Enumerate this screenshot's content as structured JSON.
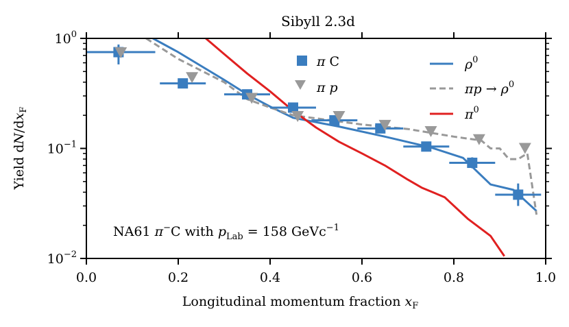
{
  "chart_data": {
    "type": "line",
    "title": "Sibyll 2.3d",
    "xlabel": "Longitudinal momentum fraction x_F",
    "ylabel": "Yield dN/dx_F",
    "xlim": [
      0.0,
      1.0
    ],
    "ylim": [
      0.01,
      1.0
    ],
    "yscale": "log",
    "xticks": [
      {
        "value": 0.0,
        "label": "0.0"
      },
      {
        "value": 0.2,
        "label": "0.2"
      },
      {
        "value": 0.4,
        "label": "0.4"
      },
      {
        "value": 0.6,
        "label": "0.6"
      },
      {
        "value": 0.8,
        "label": "0.8"
      },
      {
        "value": 1.0,
        "label": "1.0"
      }
    ],
    "yticks": [
      {
        "value": 1.0,
        "base": "10",
        "exp": "0"
      },
      {
        "value": 0.1,
        "base": "10",
        "exp": "−1"
      },
      {
        "value": 0.01,
        "base": "10",
        "exp": "−2"
      }
    ],
    "annotation": "NA61 π⁻C with p_Lab = 158 GeVc⁻¹",
    "legend": [
      {
        "label": "π C",
        "kind": "square-marker",
        "color": "#3a7dbf"
      },
      {
        "label": "π p",
        "kind": "triangle-marker",
        "color": "#999999"
      },
      {
        "label": "ρ⁰",
        "kind": "solid-line",
        "color": "#3a7dbf"
      },
      {
        "label": "πp → ρ⁰",
        "kind": "dashed-line",
        "color": "#999999"
      },
      {
        "label": "π⁰",
        "kind": "solid-line",
        "color": "#e02020"
      }
    ],
    "series": [
      {
        "name": "π C",
        "kind": "errorbar-square",
        "color": "#3a7dbf",
        "points": [
          {
            "x": 0.07,
            "y": 0.75,
            "xerr": 0.08,
            "ylo": 0.58,
            "yhi": 0.88
          },
          {
            "x": 0.21,
            "y": 0.39,
            "xerr": 0.05,
            "ylo": 0.38,
            "yhi": 0.41
          },
          {
            "x": 0.35,
            "y": 0.31,
            "xerr": 0.05,
            "ylo": 0.29,
            "yhi": 0.33
          },
          {
            "x": 0.45,
            "y": 0.235,
            "xerr": 0.05,
            "ylo": 0.22,
            "yhi": 0.25
          },
          {
            "x": 0.54,
            "y": 0.18,
            "xerr": 0.05,
            "ylo": 0.17,
            "yhi": 0.19
          },
          {
            "x": 0.64,
            "y": 0.152,
            "xerr": 0.05,
            "ylo": 0.145,
            "yhi": 0.16
          },
          {
            "x": 0.74,
            "y": 0.104,
            "xerr": 0.05,
            "ylo": 0.1,
            "yhi": 0.109
          },
          {
            "x": 0.84,
            "y": 0.074,
            "xerr": 0.05,
            "ylo": 0.066,
            "yhi": 0.083
          },
          {
            "x": 0.94,
            "y": 0.038,
            "xerr": 0.05,
            "ylo": 0.03,
            "yhi": 0.048
          }
        ]
      },
      {
        "name": "π p",
        "kind": "triangle",
        "color": "#999999",
        "points": [
          {
            "x": 0.075,
            "y": 0.74
          },
          {
            "x": 0.23,
            "y": 0.44
          },
          {
            "x": 0.36,
            "y": 0.285
          },
          {
            "x": 0.46,
            "y": 0.195
          },
          {
            "x": 0.55,
            "y": 0.195
          },
          {
            "x": 0.65,
            "y": 0.162
          },
          {
            "x": 0.75,
            "y": 0.142
          },
          {
            "x": 0.855,
            "y": 0.12
          },
          {
            "x": 0.955,
            "y": 0.1
          }
        ]
      },
      {
        "name": "ρ⁰",
        "kind": "line",
        "color": "#3a7dbf",
        "points": [
          {
            "x": 0.145,
            "y": 1.0
          },
          {
            "x": 0.2,
            "y": 0.75
          },
          {
            "x": 0.3,
            "y": 0.42
          },
          {
            "x": 0.35,
            "y": 0.31
          },
          {
            "x": 0.4,
            "y": 0.24
          },
          {
            "x": 0.45,
            "y": 0.19
          },
          {
            "x": 0.55,
            "y": 0.158
          },
          {
            "x": 0.65,
            "y": 0.128
          },
          {
            "x": 0.75,
            "y": 0.102
          },
          {
            "x": 0.82,
            "y": 0.082
          },
          {
            "x": 0.88,
            "y": 0.047
          },
          {
            "x": 0.93,
            "y": 0.042
          },
          {
            "x": 0.98,
            "y": 0.027
          }
        ]
      },
      {
        "name": "πp → ρ⁰",
        "kind": "dashed-line",
        "color": "#999999",
        "points": [
          {
            "x": 0.13,
            "y": 1.0
          },
          {
            "x": 0.2,
            "y": 0.65
          },
          {
            "x": 0.3,
            "y": 0.4
          },
          {
            "x": 0.35,
            "y": 0.28
          },
          {
            "x": 0.4,
            "y": 0.235
          },
          {
            "x": 0.45,
            "y": 0.2
          },
          {
            "x": 0.6,
            "y": 0.165
          },
          {
            "x": 0.7,
            "y": 0.15
          },
          {
            "x": 0.8,
            "y": 0.128
          },
          {
            "x": 0.86,
            "y": 0.118
          },
          {
            "x": 0.88,
            "y": 0.1
          },
          {
            "x": 0.9,
            "y": 0.1
          },
          {
            "x": 0.92,
            "y": 0.08
          },
          {
            "x": 0.94,
            "y": 0.08
          },
          {
            "x": 0.96,
            "y": 0.09
          },
          {
            "x": 0.98,
            "y": 0.025
          }
        ]
      },
      {
        "name": "π⁰",
        "kind": "line",
        "color": "#e02020",
        "points": [
          {
            "x": 0.26,
            "y": 1.0
          },
          {
            "x": 0.3,
            "y": 0.72
          },
          {
            "x": 0.35,
            "y": 0.48
          },
          {
            "x": 0.4,
            "y": 0.33
          },
          {
            "x": 0.45,
            "y": 0.22
          },
          {
            "x": 0.5,
            "y": 0.155
          },
          {
            "x": 0.55,
            "y": 0.115
          },
          {
            "x": 0.6,
            "y": 0.09
          },
          {
            "x": 0.65,
            "y": 0.07
          },
          {
            "x": 0.7,
            "y": 0.052
          },
          {
            "x": 0.73,
            "y": 0.044
          },
          {
            "x": 0.78,
            "y": 0.036
          },
          {
            "x": 0.83,
            "y": 0.023
          },
          {
            "x": 0.88,
            "y": 0.016
          },
          {
            "x": 0.91,
            "y": 0.0105
          }
        ]
      }
    ]
  }
}
